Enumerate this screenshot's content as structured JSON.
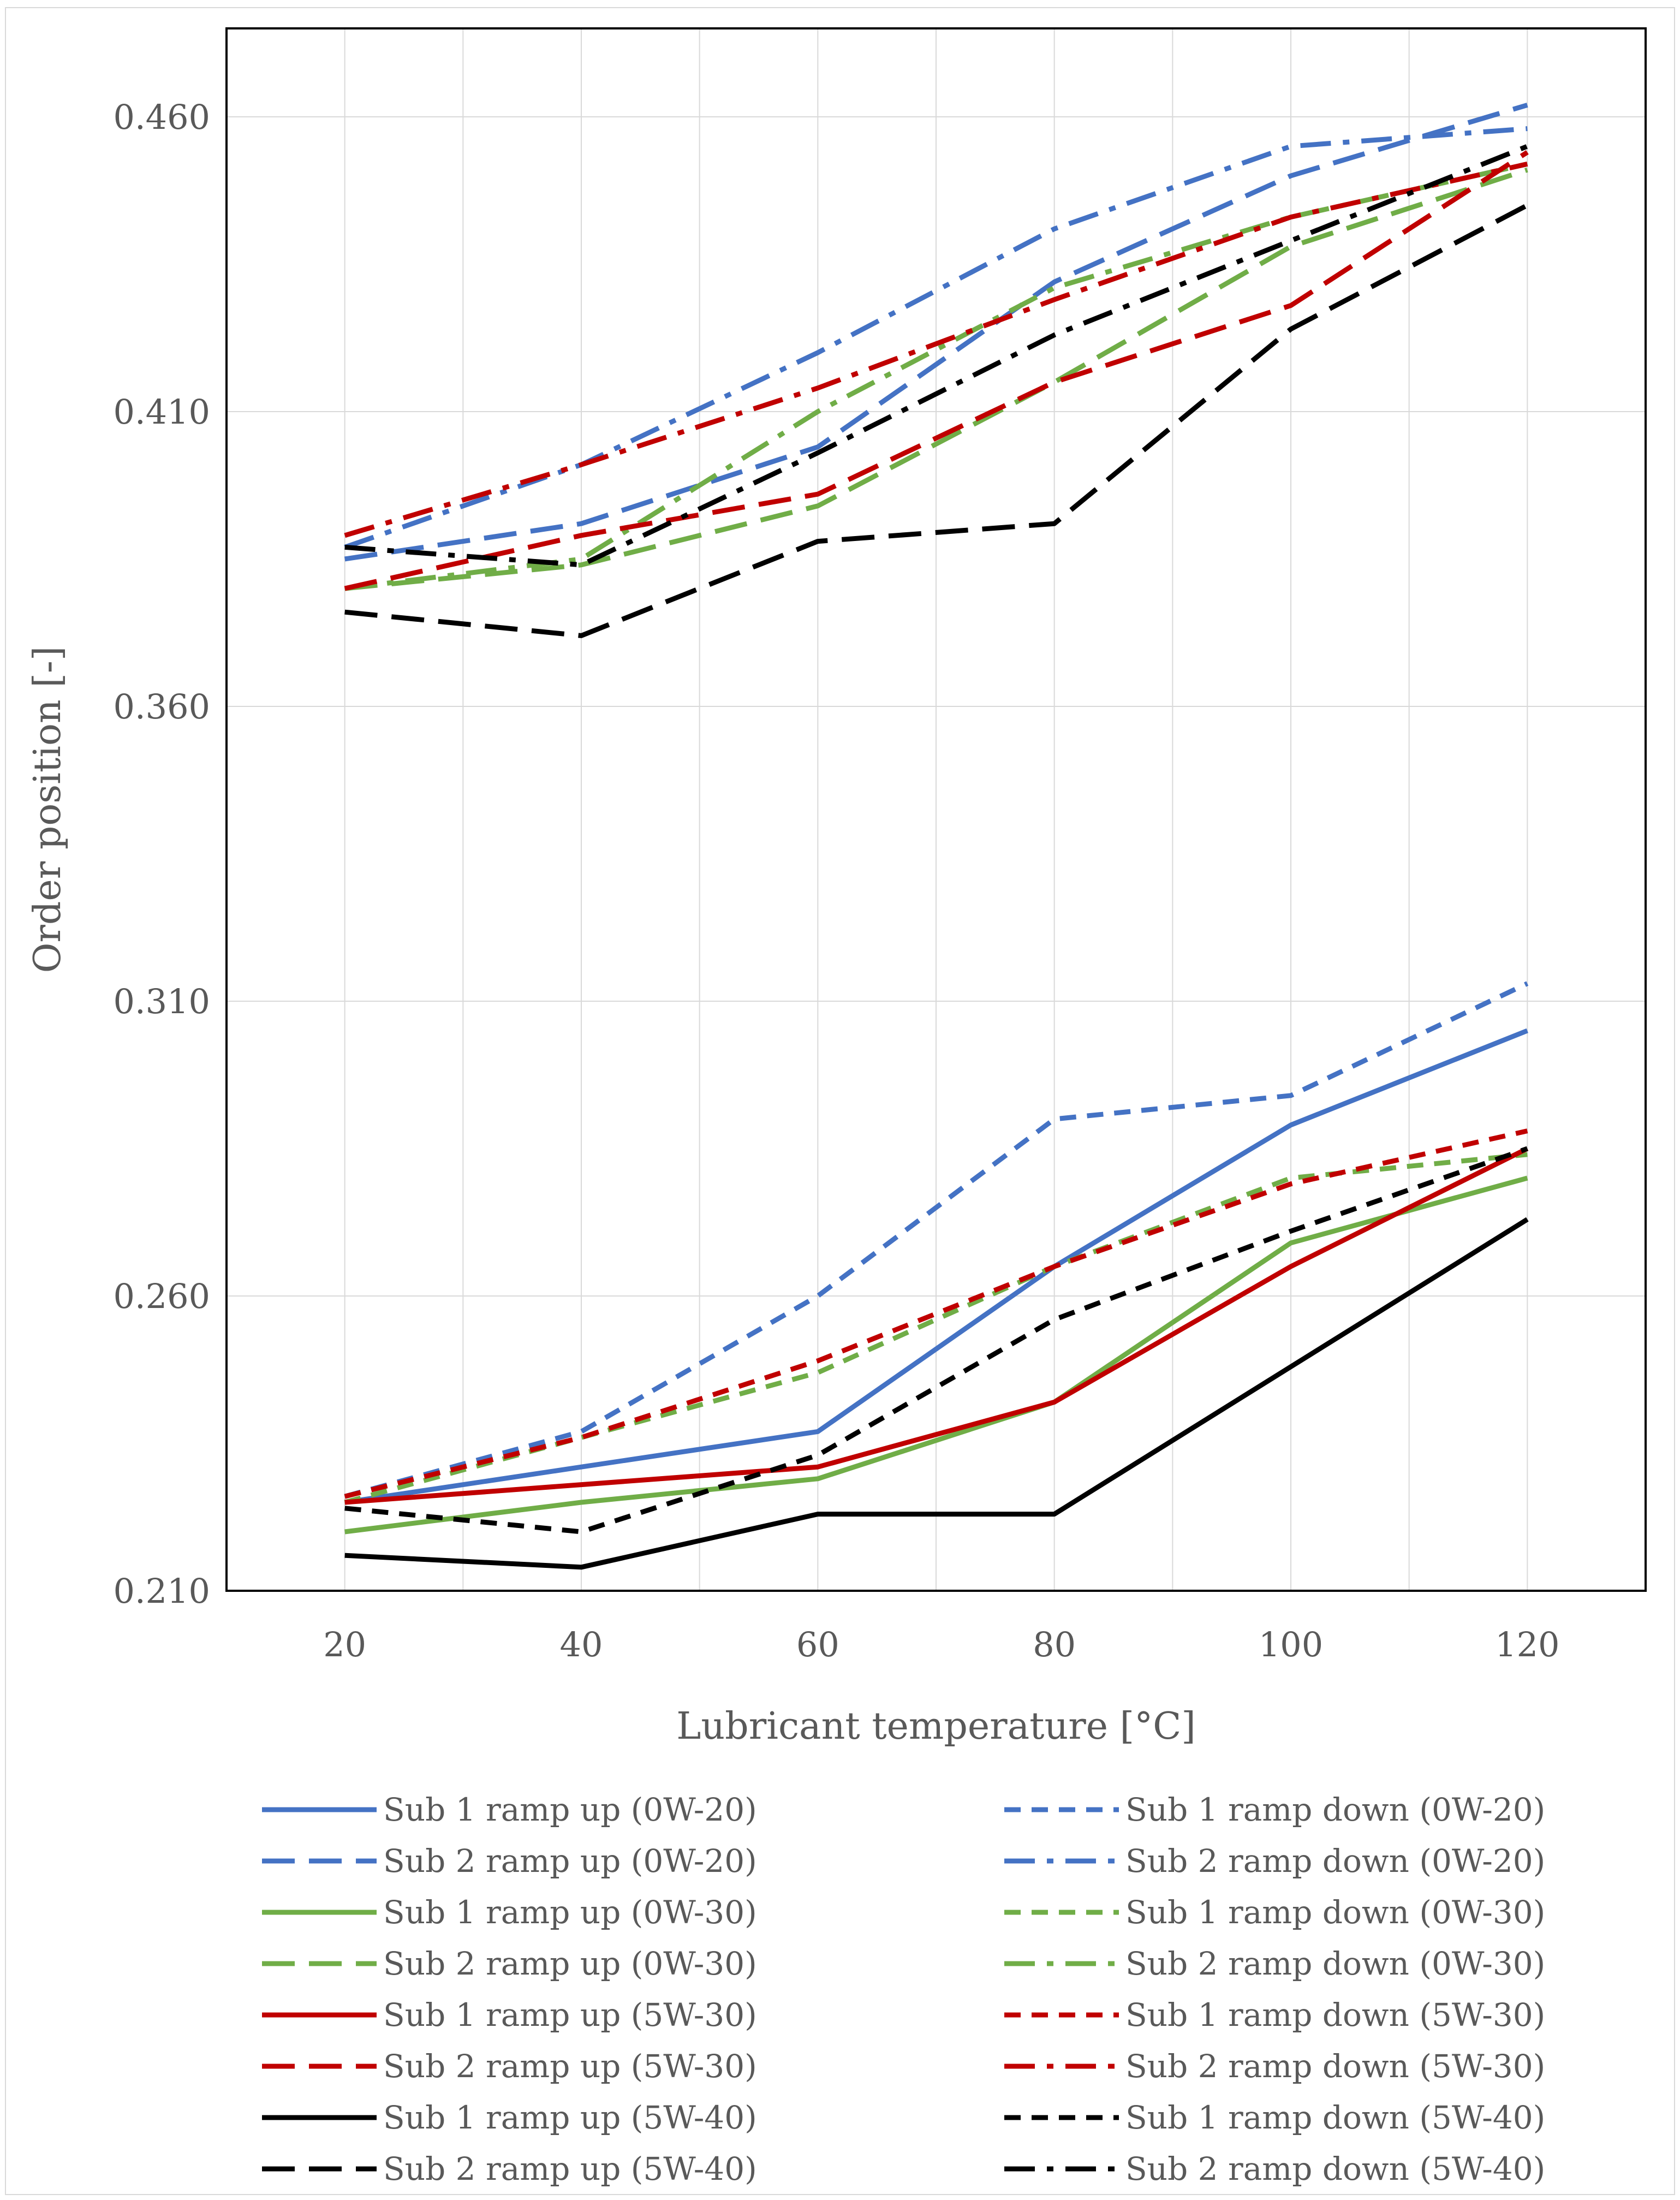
{
  "chart_data": {
    "type": "line",
    "title": "",
    "xlabel": "Lubricant temperature [°C]",
    "ylabel": "Order position [-]",
    "x": [
      20,
      40,
      60,
      80,
      100,
      120
    ],
    "ylim": [
      0.21,
      0.475
    ],
    "yticks": [
      "0.210",
      "0.260",
      "0.310",
      "0.360",
      "0.410",
      "0.460"
    ],
    "ytick_values": [
      0.21,
      0.26,
      0.31,
      0.36,
      0.41,
      0.46
    ],
    "grid": true,
    "legend_position": "bottom",
    "series": [
      {
        "name": "Sub 1 ramp up (0W-20)",
        "color": "#4472C4",
        "style": "solid",
        "values": [
          0.225,
          0.231,
          0.237,
          0.265,
          0.289,
          0.305
        ]
      },
      {
        "name": "Sub 1 ramp down (0W-20)",
        "color": "#4472C4",
        "style": "dash",
        "values": [
          0.226,
          0.237,
          0.26,
          0.29,
          0.294,
          0.313
        ]
      },
      {
        "name": "Sub 2 ramp up (0W-20)",
        "color": "#4472C4",
        "style": "longdash",
        "values": [
          0.385,
          0.391,
          0.404,
          0.432,
          0.45,
          0.462
        ]
      },
      {
        "name": "Sub 2 ramp down (0W-20)",
        "color": "#4472C4",
        "style": "dashdot",
        "values": [
          0.387,
          0.401,
          0.42,
          0.441,
          0.455,
          0.458
        ]
      },
      {
        "name": "Sub 1 ramp up (0W-30)",
        "color": "#70AD47",
        "style": "solid",
        "values": [
          0.22,
          0.225,
          0.229,
          0.242,
          0.269,
          0.28
        ]
      },
      {
        "name": "Sub 1 ramp down (0W-30)",
        "color": "#70AD47",
        "style": "dash",
        "values": [
          0.225,
          0.236,
          0.247,
          0.265,
          0.28,
          0.284
        ]
      },
      {
        "name": "Sub 2 ramp up (0W-30)",
        "color": "#70AD47",
        "style": "longdash",
        "values": [
          0.38,
          0.384,
          0.394,
          0.415,
          0.438,
          0.451
        ]
      },
      {
        "name": "Sub 2 ramp down (0W-30)",
        "color": "#70AD47",
        "style": "dashdot",
        "values": [
          0.38,
          0.385,
          0.41,
          0.431,
          0.443,
          0.452
        ]
      },
      {
        "name": "Sub 1 ramp up (5W-30)",
        "color": "#C00000",
        "style": "solid",
        "values": [
          0.225,
          0.228,
          0.231,
          0.242,
          0.265,
          0.285
        ]
      },
      {
        "name": "Sub 1 ramp down (5W-30)",
        "color": "#C00000",
        "style": "dash",
        "values": [
          0.226,
          0.236,
          0.249,
          0.265,
          0.279,
          0.288
        ]
      },
      {
        "name": "Sub 2 ramp up (5W-30)",
        "color": "#C00000",
        "style": "longdash",
        "values": [
          0.38,
          0.389,
          0.396,
          0.415,
          0.428,
          0.454
        ]
      },
      {
        "name": "Sub 2 ramp down (5W-30)",
        "color": "#C00000",
        "style": "dashdot",
        "values": [
          0.389,
          0.401,
          0.414,
          0.429,
          0.443,
          0.452
        ]
      },
      {
        "name": "Sub 1 ramp up (5W-40)",
        "color": "#000000",
        "style": "solid",
        "values": [
          0.216,
          0.214,
          0.223,
          0.223,
          0.248,
          0.273
        ]
      },
      {
        "name": "Sub 1 ramp down (5W-40)",
        "color": "#000000",
        "style": "dash",
        "values": [
          0.224,
          0.22,
          0.233,
          0.256,
          0.271,
          0.285
        ]
      },
      {
        "name": "Sub 2 ramp up (5W-40)",
        "color": "#000000",
        "style": "longdash",
        "values": [
          0.376,
          0.372,
          0.388,
          0.391,
          0.424,
          0.445
        ]
      },
      {
        "name": "Sub 2 ramp down (5W-40)",
        "color": "#000000",
        "style": "dashdot",
        "values": [
          0.387,
          0.384,
          0.403,
          0.423,
          0.439,
          0.455
        ]
      }
    ]
  }
}
